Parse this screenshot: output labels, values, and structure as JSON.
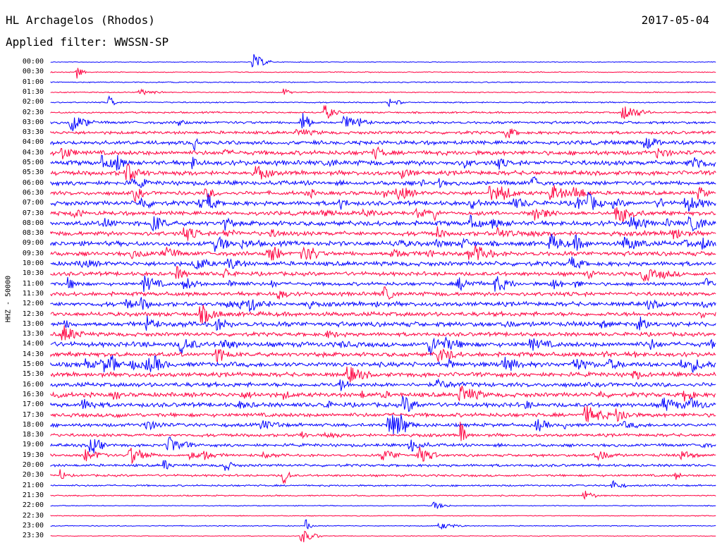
{
  "header": {
    "station": "HL Archagelos (Rhodos)",
    "date": "2017-05-04",
    "filter": "Applied filter: WWSSN-SP"
  },
  "chart_data": {
    "type": "line",
    "title": "HL Archagelos (Rhodos)",
    "ylabel": "HHZ - 50000",
    "rows": [
      "00:00",
      "00:30",
      "01:00",
      "01:30",
      "02:00",
      "02:30",
      "03:00",
      "03:30",
      "04:00",
      "04:30",
      "05:00",
      "05:30",
      "06:00",
      "06:30",
      "07:00",
      "07:30",
      "08:00",
      "08:30",
      "09:00",
      "09:30",
      "10:00",
      "10:30",
      "11:00",
      "11:30",
      "12:00",
      "12:30",
      "13:00",
      "13:30",
      "14:00",
      "14:30",
      "15:00",
      "15:30",
      "16:00",
      "16:30",
      "17:00",
      "17:30",
      "18:00",
      "18:30",
      "19:00",
      "19:30",
      "20:00",
      "20:30",
      "21:00",
      "21:30",
      "22:00",
      "22:30",
      "23:00",
      "23:30"
    ],
    "noise_level": [
      0.3,
      0.4,
      0.5,
      0.5,
      0.6,
      0.8,
      1.2,
      1.4,
      1.8,
      2.0,
      2.2,
      2.0,
      2.0,
      1.8,
      2.0,
      1.8,
      2.2,
      2.0,
      2.2,
      2.0,
      2.0,
      1.8,
      1.6,
      1.8,
      2.0,
      2.0,
      2.2,
      1.8,
      2.2,
      2.0,
      2.2,
      2.0,
      2.0,
      2.0,
      2.0,
      1.8,
      1.6,
      1.4,
      1.4,
      1.2,
      1.2,
      1.0,
      0.8,
      0.6,
      0.4,
      0.4,
      0.4,
      0.3
    ],
    "colors": [
      "#0000ff",
      "#ff0040"
    ]
  }
}
